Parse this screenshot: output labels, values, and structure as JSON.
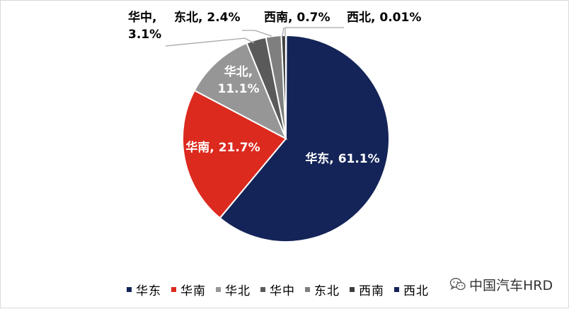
{
  "chart_data": {
    "type": "pie",
    "title": "",
    "categories": [
      "华东",
      "华南",
      "华北",
      "华中",
      "东北",
      "西南",
      "西北"
    ],
    "values": [
      61.1,
      21.7,
      11.1,
      3.1,
      2.4,
      0.7,
      0.01
    ],
    "colors": [
      "#142458",
      "#dc2a1f",
      "#969696",
      "#5a5a5a",
      "#7f7f7f",
      "#3f3f3f",
      "#142458"
    ],
    "data_labels": [
      [
        "华东, 61.1%"
      ],
      [
        "华南, 21.7%"
      ],
      [
        "华北,",
        "11.1%"
      ],
      [
        "华中,",
        "3.1%"
      ],
      [
        "东北, 2.4%"
      ],
      [
        "西南, 0.7%"
      ],
      [
        "西北, 0.01%"
      ]
    ],
    "legend_position": "bottom"
  },
  "watermark": {
    "text": "中国汽车HRD",
    "icon": "wechat-icon"
  }
}
